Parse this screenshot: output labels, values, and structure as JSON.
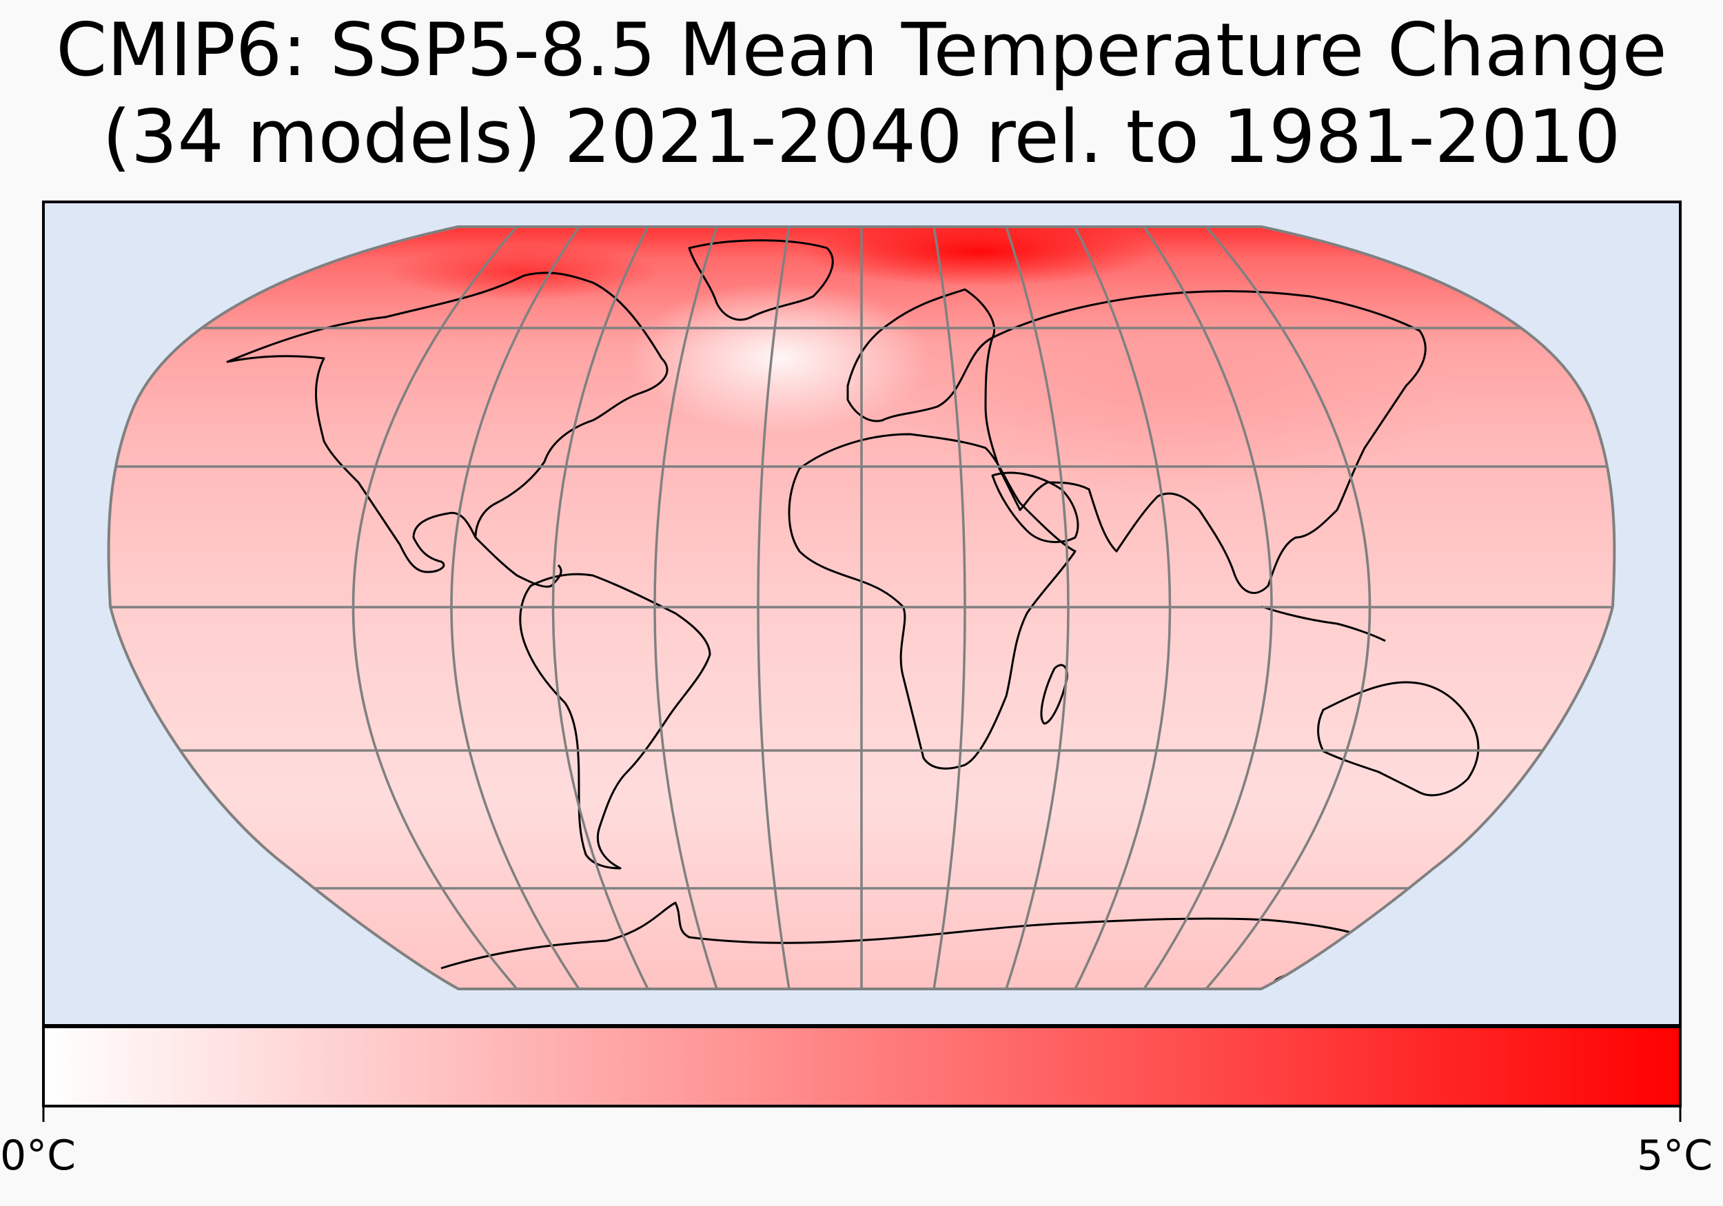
{
  "title": {
    "line1": "CMIP6: SSP5-8.5 Mean Temperature Change",
    "line2": "(34 models) 2021-2040 rel. to 1981-2010"
  },
  "colorbar": {
    "min_label": "0°C",
    "max_label": "5°C",
    "min_value": 0,
    "max_value": 5,
    "unit": "°C",
    "color_low": "#ffffff",
    "color_high": "#ff0000"
  },
  "map": {
    "projection": "Robinson",
    "ocean_background": "#dde7f6",
    "graticule_color": "#808080",
    "coastline_color": "#000000",
    "graticule_lat_step": 30,
    "graticule_lon_step": 30
  }
}
